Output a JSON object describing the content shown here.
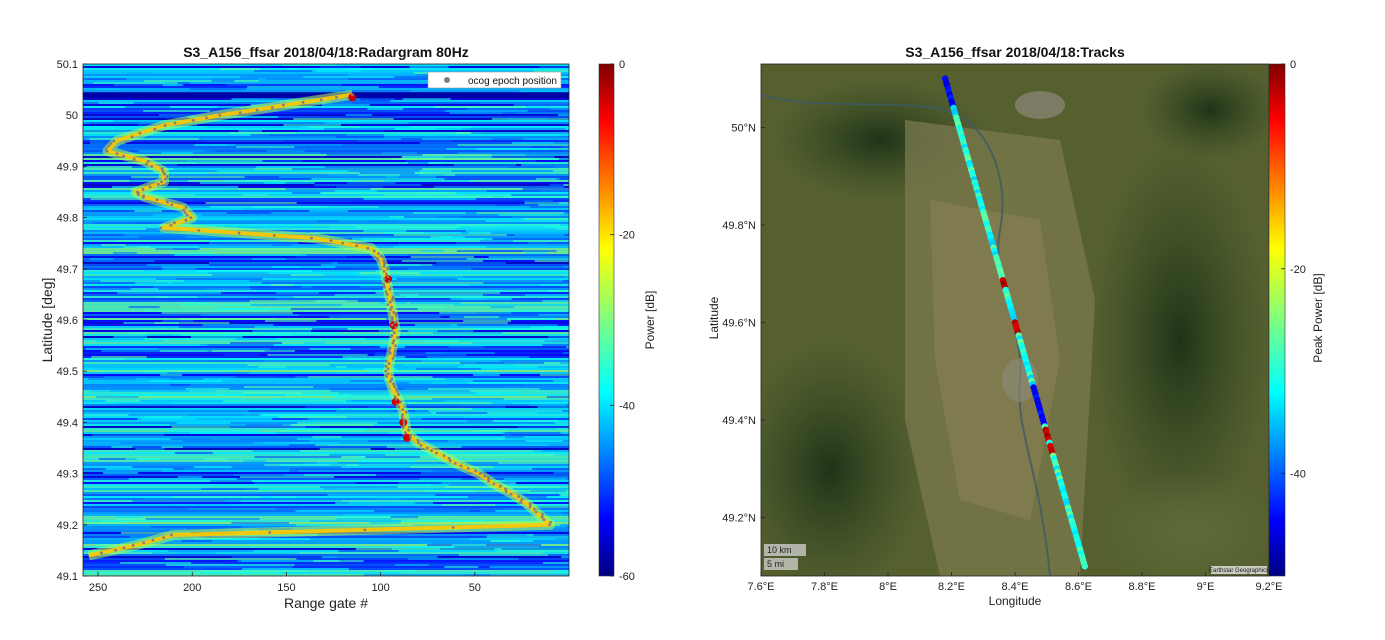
{
  "chart_data": [
    {
      "type": "heatmap",
      "title": "S3_A156_ffsar 2018/04/18:Radargram 80Hz",
      "xlabel": "Range gate #",
      "ylabel": "Latitude [deg]",
      "xlim": [
        258,
        0
      ],
      "xaxis_reversed": true,
      "ylim": [
        49.1,
        50.1
      ],
      "xticks": [
        "250",
        "200",
        "150",
        "100",
        "50"
      ],
      "xtick_values": [
        250,
        200,
        150,
        100,
        50
      ],
      "yticks": [
        "50.1",
        "50",
        "49.9",
        "49.8",
        "49.7",
        "49.6",
        "49.5",
        "49.4",
        "49.3",
        "49.2",
        "49.1"
      ],
      "ytick_values": [
        50.1,
        50.0,
        49.9,
        49.8,
        49.7,
        49.6,
        49.5,
        49.4,
        49.3,
        49.2,
        49.1
      ],
      "colorbar": {
        "label": "Power [dB]",
        "range": [
          -60,
          0
        ],
        "ticks": [
          "0",
          "-20",
          "-40",
          "-60"
        ],
        "tick_values": [
          0,
          -20,
          -40,
          -60
        ],
        "colormap": "jet"
      },
      "legend": {
        "placement": "top-right",
        "entries": [
          "ocog epoch position"
        ],
        "marker_color": "#808080"
      },
      "ocog_epoch_track": {
        "lat": [
          50.04,
          50.02,
          50.0,
          49.98,
          49.95,
          49.93,
          49.91,
          49.89,
          49.87,
          49.85,
          49.84,
          49.82,
          49.8,
          49.78,
          49.76,
          49.74,
          49.72,
          49.7,
          49.68,
          49.66,
          49.64,
          49.62,
          49.6,
          49.58,
          49.56,
          49.54,
          49.52,
          49.5,
          49.48,
          49.46,
          49.44,
          49.42,
          49.4,
          49.38,
          49.36,
          49.34,
          49.32,
          49.3,
          49.28,
          49.26,
          49.24,
          49.22,
          49.2,
          49.18,
          49.16,
          49.14
        ],
        "gate": [
          115,
          150,
          185,
          215,
          240,
          245,
          225,
          215,
          215,
          230,
          225,
          205,
          200,
          215,
          135,
          105,
          100,
          98,
          97,
          96,
          95,
          94,
          93,
          92,
          93,
          94,
          95,
          96,
          95,
          93,
          90,
          88,
          87,
          86,
          80,
          70,
          60,
          48,
          40,
          30,
          22,
          16,
          10,
          210,
          230,
          255
        ]
      }
    },
    {
      "type": "scatter",
      "title": "S3_A156_ffsar 2018/04/18:Tracks",
      "xlabel": "Longitude",
      "ylabel": "Latitude",
      "xlim": [
        7.6,
        9.2
      ],
      "ylim": [
        49.08,
        50.13
      ],
      "xticks": [
        "7.6°E",
        "7.8°E",
        "8°E",
        "8.2°E",
        "8.4°E",
        "8.6°E",
        "8.8°E",
        "9°E",
        "9.2°E"
      ],
      "xtick_values": [
        7.6,
        7.8,
        8.0,
        8.2,
        8.4,
        8.6,
        8.8,
        9.0,
        9.2
      ],
      "yticks": [
        "50°N",
        "49.8°N",
        "49.6°N",
        "49.4°N",
        "49.2°N"
      ],
      "ytick_values": [
        50.0,
        49.8,
        49.6,
        49.4,
        49.2
      ],
      "colorbar": {
        "label": "Peak Power [dB]",
        "range": [
          -50,
          0
        ],
        "ticks": [
          "0",
          "-20",
          "-40"
        ],
        "tick_values": [
          0,
          -20,
          -40
        ],
        "colormap": "jet"
      },
      "track": {
        "start": {
          "lon": 8.18,
          "lat": 50.1
        },
        "end": {
          "lon": 8.62,
          "lat": 49.1
        },
        "typical_peak_power_db": -30,
        "high_power_lat": [
          49.68,
          49.59,
          49.43,
          49.37,
          49.34
        ],
        "low_power_lat": [
          50.1,
          50.08,
          50.06,
          49.45,
          49.41
        ]
      },
      "basemap": "satellite",
      "scalebar": [
        "10 km",
        "5 mi"
      ],
      "attribution": "Earthstar Geographics"
    }
  ]
}
